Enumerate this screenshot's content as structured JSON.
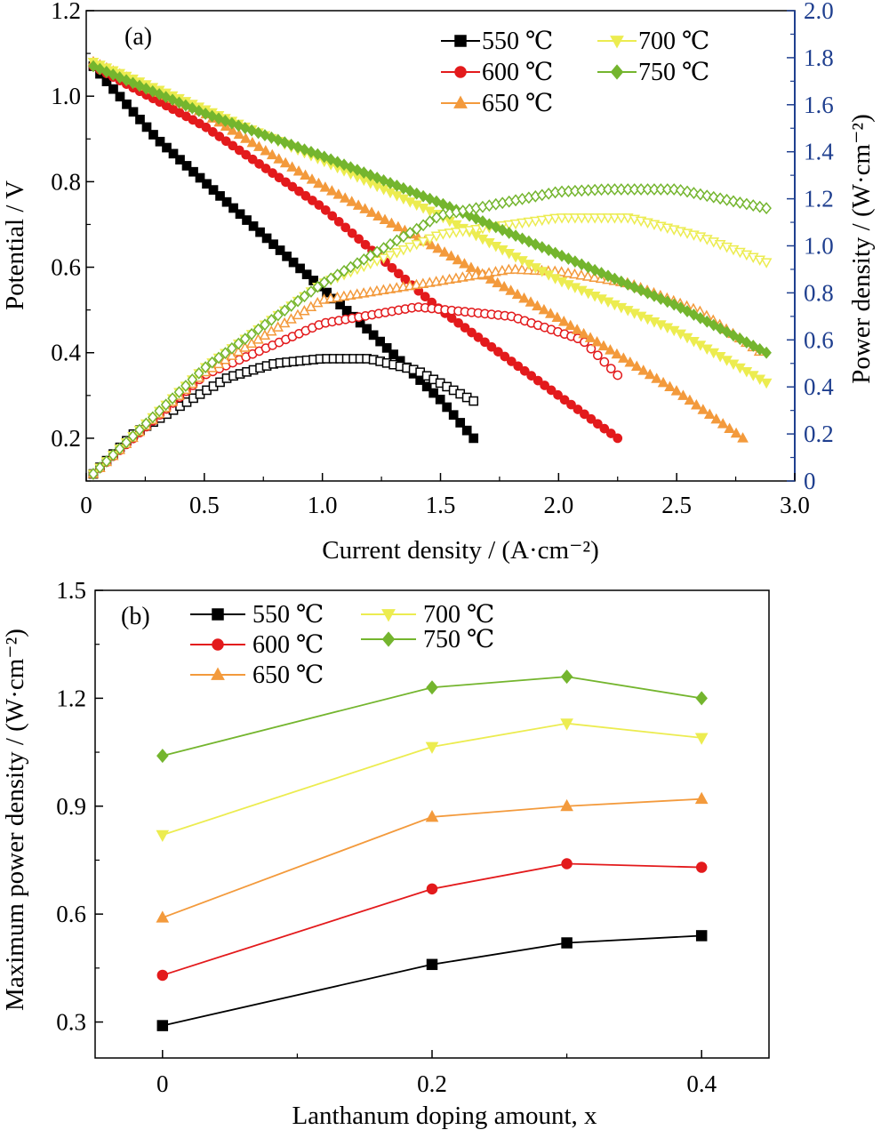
{
  "chart_data": [
    {
      "type": "line",
      "panel_label": "(a)",
      "xlabel": "Current density / (A·cm⁻²)",
      "ylabel": "Potential / V",
      "y2label": "Power density / (W·cm⁻²)",
      "xlim": [
        0,
        3.0
      ],
      "ylim": [
        0.1,
        1.2
      ],
      "y2lim": [
        0,
        2.0
      ],
      "xticks": [
        "0",
        "0.5",
        "1.0",
        "1.5",
        "2.0",
        "2.5",
        "3.0"
      ],
      "yticks": [
        "0.2",
        "0.4",
        "0.6",
        "0.8",
        "1.0",
        "1.2"
      ],
      "y2ticks": [
        "0",
        "0.2",
        "0.4",
        "0.6",
        "0.8",
        "1.0",
        "1.2",
        "1.4",
        "1.6",
        "1.8",
        "2.0"
      ],
      "legend_position": "top-right",
      "series": [
        {
          "name": "550 ℃",
          "color": "#000000",
          "marker": "square",
          "potential": {
            "x": [
              0.03,
              0.3,
              0.6,
              0.9,
              1.2,
              1.5,
              1.64
            ],
            "y": [
              1.07,
              0.9,
              0.75,
              0.6,
              0.45,
              0.29,
              0.2
            ]
          },
          "power": {
            "x": [
              0.03,
              0.2,
              0.4,
              0.6,
              0.8,
              1.0,
              1.2,
              1.4,
              1.64
            ],
            "y": [
              0.03,
              0.2,
              0.32,
              0.44,
              0.5,
              0.52,
              0.52,
              0.47,
              0.34
            ]
          }
        },
        {
          "name": "600 ℃",
          "color": "#e31a1c",
          "marker": "circle",
          "potential": {
            "x": [
              0.03,
              0.5,
              1.0,
              1.5,
              2.0,
              2.25
            ],
            "y": [
              1.07,
              0.93,
              0.74,
              0.5,
              0.3,
              0.2
            ]
          },
          "power": {
            "x": [
              0.03,
              0.5,
              1.0,
              1.4,
              1.8,
              2.1,
              2.25
            ],
            "y": [
              0.03,
              0.45,
              0.67,
              0.74,
              0.7,
              0.6,
              0.45
            ]
          }
        },
        {
          "name": "650 ℃",
          "color": "#f39a3c",
          "marker": "triangle",
          "potential": {
            "x": [
              0.03,
              0.5,
              1.0,
              1.5,
              2.0,
              2.5,
              2.78
            ],
            "y": [
              1.08,
              0.96,
              0.79,
              0.64,
              0.48,
              0.31,
              0.2
            ]
          },
          "power": {
            "x": [
              0.03,
              0.5,
              1.0,
              1.5,
              1.8,
              2.0,
              2.3,
              2.6,
              2.85
            ],
            "y": [
              0.03,
              0.46,
              0.77,
              0.85,
              0.9,
              0.89,
              0.84,
              0.72,
              0.55
            ]
          }
        },
        {
          "name": "700 ℃",
          "color": "#ecec50",
          "marker": "triangle-down",
          "potential": {
            "x": [
              0.03,
              0.5,
              1.0,
              1.5,
              2.0,
              2.5,
              2.88
            ],
            "y": [
              1.08,
              0.97,
              0.85,
              0.72,
              0.57,
              0.45,
              0.33
            ]
          },
          "power": {
            "x": [
              0.03,
              0.5,
              1.0,
              1.5,
              2.0,
              2.3,
              2.6,
              2.88
            ],
            "y": [
              0.03,
              0.48,
              0.84,
              1.05,
              1.12,
              1.12,
              1.04,
              0.93
            ]
          }
        },
        {
          "name": "750 ℃",
          "color": "#74b52e",
          "marker": "diamond",
          "potential": {
            "x": [
              0.03,
              0.5,
              1.0,
              1.5,
              2.0,
              2.5,
              2.88
            ],
            "y": [
              1.07,
              0.96,
              0.86,
              0.75,
              0.63,
              0.51,
              0.4
            ]
          },
          "power": {
            "x": [
              0.03,
              0.5,
              1.0,
              1.5,
              2.0,
              2.2,
              2.5,
              2.88
            ],
            "y": [
              0.03,
              0.48,
              0.84,
              1.13,
              1.23,
              1.24,
              1.24,
              1.16
            ]
          }
        }
      ]
    },
    {
      "type": "line",
      "panel_label": "(b)",
      "xlabel": "Lanthanum doping amount, x",
      "ylabel": "Maximum power density / (W·cm⁻²)",
      "xlim": [
        -0.05,
        0.45
      ],
      "ylim": [
        0.2,
        1.5
      ],
      "xticks": [
        "0",
        "0.2",
        "0.4"
      ],
      "yticks": [
        "0.3",
        "0.6",
        "0.9",
        "1.2",
        "1.5"
      ],
      "legend_position": "top-left",
      "x": [
        0,
        0.2,
        0.3,
        0.4
      ],
      "series": [
        {
          "name": "550 ℃",
          "color": "#000000",
          "marker": "square",
          "values": [
            0.29,
            0.46,
            0.52,
            0.54
          ]
        },
        {
          "name": "600 ℃",
          "color": "#e31a1c",
          "marker": "circle",
          "values": [
            0.43,
            0.67,
            0.74,
            0.73
          ]
        },
        {
          "name": "650 ℃",
          "color": "#f39a3c",
          "marker": "triangle",
          "values": [
            0.59,
            0.87,
            0.9,
            0.92
          ]
        },
        {
          "name": "700 ℃",
          "color": "#ecec50",
          "marker": "triangle-down",
          "values": [
            0.82,
            1.065,
            1.13,
            1.09
          ]
        },
        {
          "name": "750 ℃",
          "color": "#74b52e",
          "marker": "diamond",
          "values": [
            1.04,
            1.23,
            1.26,
            1.2
          ]
        }
      ]
    }
  ]
}
